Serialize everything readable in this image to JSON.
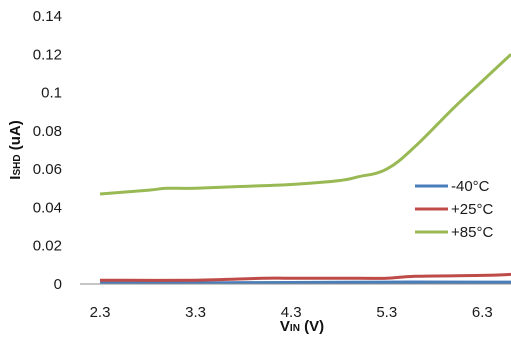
{
  "chart_data": {
    "type": "line",
    "title": "",
    "xlabel": {
      "main": "V",
      "sub": "IN",
      "unit": " (V)"
    },
    "ylabel": {
      "main": "I",
      "sub": "SHD",
      "unit": " (uA)"
    },
    "xlim": [
      2.3,
      6.6
    ],
    "ylim": [
      0,
      0.14
    ],
    "x_ticks": [
      "2.3",
      "3.3",
      "4.3",
      "5.3",
      "6.3"
    ],
    "y_ticks": [
      "0",
      "0.02",
      "0.04",
      "0.06",
      "0.08",
      "0.1",
      "0.12",
      "0.14"
    ],
    "grid": false,
    "legend_position": "right",
    "series": [
      {
        "name": "-40°C",
        "color": "#4a7ebb",
        "x": [
          2.3,
          3.3,
          4.3,
          5.3,
          6.3,
          6.6
        ],
        "values": [
          0.0005,
          0.0006,
          0.0008,
          0.001,
          0.001,
          0.001
        ]
      },
      {
        "name": "+25°C",
        "color": "#be4b48",
        "x": [
          2.3,
          3.3,
          4.0,
          4.3,
          5.0,
          5.3,
          5.6,
          6.3,
          6.6
        ],
        "values": [
          0.002,
          0.002,
          0.003,
          0.003,
          0.003,
          0.003,
          0.004,
          0.0045,
          0.005
        ]
      },
      {
        "name": "+85°C",
        "color": "#98b954",
        "x": [
          2.3,
          2.8,
          3.0,
          3.3,
          3.8,
          4.3,
          4.8,
          5.0,
          5.3,
          5.6,
          6.0,
          6.3,
          6.6
        ],
        "values": [
          0.047,
          0.049,
          0.05,
          0.05,
          0.051,
          0.052,
          0.054,
          0.056,
          0.06,
          0.072,
          0.092,
          0.106,
          0.12
        ]
      }
    ]
  }
}
